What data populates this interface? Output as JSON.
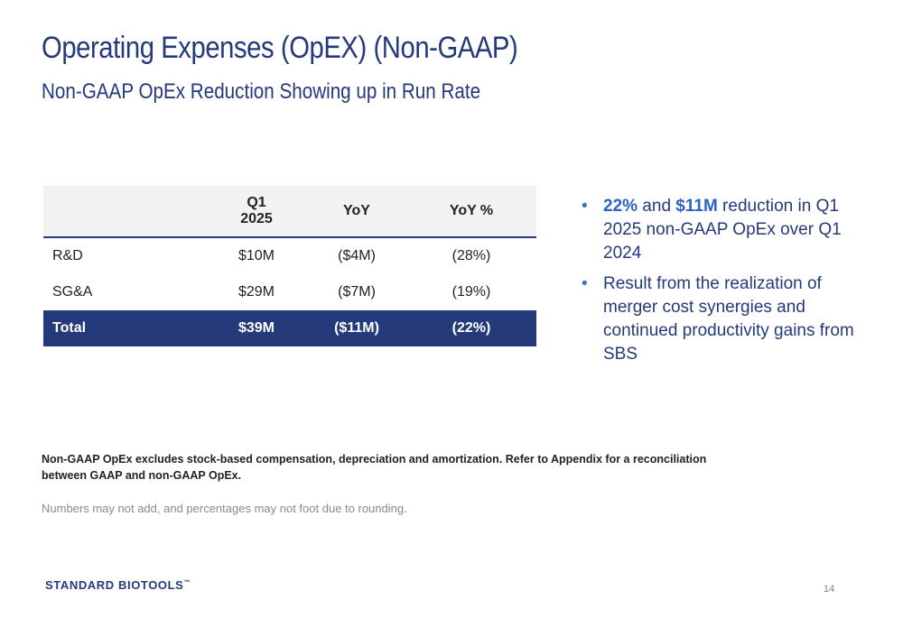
{
  "header": {
    "title": "Operating Expenses (OpEX) (Non-GAAP)",
    "subtitle": "Non-GAAP OpEx Reduction Showing up in Run Rate"
  },
  "table": {
    "columns": [
      "",
      "Q1\n2025",
      "YoY",
      "YoY %"
    ],
    "col_q1_line1": "Q1",
    "col_q1_line2": "2025",
    "col_yoy": "YoY",
    "col_yoy_pct": "YoY %",
    "rows": [
      {
        "label": "R&D",
        "q1": "$10M",
        "yoy": "($4M)",
        "yoy_pct": "(28%)"
      },
      {
        "label": "SG&A",
        "q1": "$29M",
        "yoy": "($7M)",
        "yoy_pct": "(19%)"
      }
    ],
    "total": {
      "label": "Total",
      "q1": "$39M",
      "yoy": "($11M)",
      "yoy_pct": "(22%)"
    }
  },
  "bullets": {
    "b1_hl1": "22%",
    "b1_mid": " and ",
    "b1_hl2": "$11M",
    "b1_rest": " reduction in Q1 2025 non-GAAP OpEx over Q1 2024",
    "b2": "Result from the realization of merger cost synergies and continued productivity gains from SBS",
    "bullet_char": "•"
  },
  "footnote": "Non-GAAP OpEx excludes stock-based compensation, depreciation and amortization.  Refer to Appendix for a reconciliation between GAAP and non-GAAP OpEx.",
  "rounding_note": "Numbers may not add, and percentages may not foot due to rounding.",
  "logo": {
    "text": "STANDARD BIOTOOLS",
    "tm": "™"
  },
  "page_number": "14",
  "colors": {
    "navy": "#243a7a",
    "accent_blue": "#2d62c4",
    "header_bg": "#f2f2f2"
  }
}
